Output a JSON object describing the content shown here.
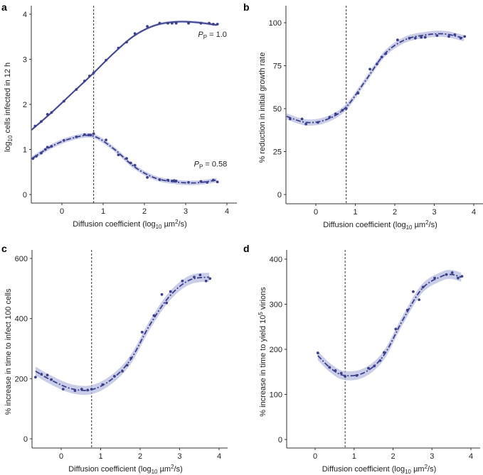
{
  "colors": {
    "line": "#3b3f8c",
    "point": "#3b3f8c",
    "band": "#b8bce0",
    "axis": "#333333",
    "vline": "#333333"
  },
  "chart_data": [
    {
      "id": "a",
      "letter": "a",
      "type": "scatter",
      "xlabel": {
        "pre": "Diffusion coefficient (log",
        "sub": "10",
        "mid": " µm",
        "sup": "2",
        "post": "/s)"
      },
      "ylabel": {
        "pre": "log",
        "sub": "10",
        "mid": " cells infected in 12 h",
        "sup": "",
        "post": ""
      },
      "xticks": [
        "0",
        "1",
        "2",
        "3",
        "4"
      ],
      "yticks": [
        "0",
        "1",
        "2",
        "3",
        "4"
      ],
      "xlim": [
        -0.74,
        4.24
      ],
      "ylim": [
        0,
        4
      ],
      "vline": 0.77,
      "series": [
        {
          "name": "PP = 1.0",
          "style": "solid",
          "band": 0.03,
          "annotation": {
            "pre": "P",
            "sub": "P",
            "post": " = 1.0",
            "x": 3.3,
            "y": 3.5
          },
          "points": [
            [
              -0.65,
              1.52
            ],
            [
              -0.5,
              1.62
            ],
            [
              -0.35,
              1.78
            ],
            [
              -0.25,
              1.82
            ],
            [
              0.05,
              2.07
            ],
            [
              0.35,
              2.33
            ],
            [
              0.55,
              2.52
            ],
            [
              0.67,
              2.63
            ],
            [
              0.77,
              2.7
            ],
            [
              1.07,
              2.98
            ],
            [
              1.37,
              3.25
            ],
            [
              1.57,
              3.38
            ],
            [
              1.77,
              3.57
            ],
            [
              2.07,
              3.73
            ],
            [
              2.37,
              3.8
            ],
            [
              2.57,
              3.8
            ],
            [
              2.67,
              3.8
            ],
            [
              2.77,
              3.8
            ],
            [
              3.07,
              3.8
            ],
            [
              3.37,
              3.8
            ],
            [
              3.57,
              3.8
            ],
            [
              3.67,
              3.78
            ],
            [
              3.77,
              3.78
            ]
          ],
          "fit": [
            [
              -0.74,
              1.43
            ],
            [
              -0.25,
              1.82
            ],
            [
              0.25,
              2.25
            ],
            [
              0.75,
              2.68
            ],
            [
              1.25,
              3.13
            ],
            [
              1.75,
              3.52
            ],
            [
              2.25,
              3.75
            ],
            [
              2.75,
              3.83
            ],
            [
              3.25,
              3.82
            ],
            [
              3.75,
              3.76
            ]
          ]
        },
        {
          "name": "PP = 0.58",
          "style": "dashdot",
          "band": 0.05,
          "annotation": {
            "pre": "P",
            "sub": "P",
            "post": " = 0.58",
            "x": 3.2,
            "y": 0.62
          },
          "points": [
            [
              -0.7,
              0.8
            ],
            [
              -0.62,
              0.85
            ],
            [
              -0.5,
              0.92
            ],
            [
              -0.4,
              1.0
            ],
            [
              -0.35,
              1.05
            ],
            [
              -0.25,
              1.07
            ],
            [
              0.05,
              1.2
            ],
            [
              0.35,
              1.28
            ],
            [
              0.55,
              1.33
            ],
            [
              0.65,
              1.32
            ],
            [
              0.7,
              1.32
            ],
            [
              0.77,
              1.35
            ],
            [
              1.07,
              1.21
            ],
            [
              1.37,
              0.88
            ],
            [
              1.57,
              0.8
            ],
            [
              1.67,
              0.7
            ],
            [
              1.77,
              0.65
            ],
            [
              2.07,
              0.38
            ],
            [
              2.37,
              0.33
            ],
            [
              2.57,
              0.32
            ],
            [
              2.67,
              0.3
            ],
            [
              2.72,
              0.31
            ],
            [
              2.77,
              0.3
            ],
            [
              3.07,
              0.27
            ],
            [
              3.37,
              0.29
            ],
            [
              3.52,
              0.27
            ],
            [
              3.67,
              0.32
            ],
            [
              3.77,
              0.28
            ]
          ],
          "fit": [
            [
              -0.74,
              0.79
            ],
            [
              -0.25,
              1.07
            ],
            [
              0.25,
              1.25
            ],
            [
              0.75,
              1.3
            ],
            [
              1.25,
              1.02
            ],
            [
              1.75,
              0.62
            ],
            [
              2.25,
              0.37
            ],
            [
              2.75,
              0.28
            ],
            [
              3.25,
              0.26
            ],
            [
              3.75,
              0.32
            ]
          ]
        }
      ]
    },
    {
      "id": "b",
      "letter": "b",
      "type": "scatter",
      "xlabel": {
        "pre": "Diffusion coefficient (log",
        "sub": "10",
        "mid": " µm",
        "sup": "2",
        "post": "/s)"
      },
      "ylabel": {
        "pre": "% reduction in initial growth rate",
        "sub": "",
        "mid": "",
        "sup": "",
        "post": ""
      },
      "xticks": [
        "0",
        "1",
        "2",
        "3",
        "4"
      ],
      "yticks": [
        "0",
        "25",
        "50",
        "75",
        "100"
      ],
      "xlim": [
        -0.74,
        4.24
      ],
      "ylim": [
        0,
        100
      ],
      "vline": 0.77,
      "series": [
        {
          "name": "fit",
          "style": "dashdot",
          "band": 1.8,
          "points": [
            [
              -0.65,
              44
            ],
            [
              -0.35,
              44
            ],
            [
              -0.25,
              41
            ],
            [
              0.05,
              42
            ],
            [
              0.35,
              45
            ],
            [
              0.5,
              47
            ],
            [
              0.67,
              49
            ],
            [
              0.77,
              50
            ],
            [
              1.07,
              59
            ],
            [
              1.37,
              73
            ],
            [
              1.55,
              76
            ],
            [
              1.67,
              80
            ],
            [
              1.77,
              82
            ],
            [
              2.07,
              90
            ],
            [
              2.37,
              91
            ],
            [
              2.52,
              91
            ],
            [
              2.67,
              91.5
            ],
            [
              2.77,
              91.5
            ],
            [
              3.07,
              92.5
            ],
            [
              3.37,
              92
            ],
            [
              3.52,
              93
            ],
            [
              3.67,
              91
            ],
            [
              3.77,
              92
            ]
          ],
          "fit": [
            [
              -0.74,
              45.5
            ],
            [
              -0.25,
              42
            ],
            [
              0.25,
              43.5
            ],
            [
              0.75,
              50.5
            ],
            [
              1.25,
              66
            ],
            [
              1.75,
              82
            ],
            [
              2.25,
              90
            ],
            [
              2.75,
              92.8
            ],
            [
              3.25,
              93.5
            ],
            [
              3.75,
              91
            ]
          ]
        }
      ]
    },
    {
      "id": "c",
      "letter": "c",
      "type": "scatter",
      "xlabel": {
        "pre": "Diffusion coefficient (log",
        "sub": "10",
        "mid": " µm",
        "sup": "2",
        "post": "/s)"
      },
      "ylabel": {
        "pre": "% increase in time to infect 100 cells",
        "sub": "",
        "mid": "",
        "sup": "",
        "post": ""
      },
      "xticks": [
        "0",
        "1",
        "2",
        "3",
        "4"
      ],
      "yticks": [
        "0",
        "200",
        "400",
        "600"
      ],
      "xlim": [
        -0.74,
        4.24
      ],
      "ylim": [
        0,
        600
      ],
      "vline": 0.77,
      "series": [
        {
          "name": "fit",
          "style": "dashdot",
          "band": 15,
          "points": [
            [
              -0.65,
              205
            ],
            [
              -0.5,
              215
            ],
            [
              -0.35,
              212
            ],
            [
              -0.25,
              197
            ],
            [
              0.05,
              165
            ],
            [
              0.35,
              160
            ],
            [
              0.52,
              165
            ],
            [
              0.67,
              162
            ],
            [
              0.77,
              165
            ],
            [
              1.05,
              180
            ],
            [
              1.35,
              208
            ],
            [
              1.55,
              225
            ],
            [
              1.67,
              245
            ],
            [
              1.77,
              268
            ],
            [
              2.05,
              355
            ],
            [
              2.35,
              410
            ],
            [
              2.55,
              480
            ],
            [
              2.67,
              452
            ],
            [
              2.77,
              490
            ],
            [
              3.07,
              525
            ],
            [
              3.37,
              538
            ],
            [
              3.52,
              545
            ],
            [
              3.67,
              525
            ],
            [
              3.77,
              533
            ]
          ],
          "fit": [
            [
              -0.65,
              225
            ],
            [
              -0.25,
              195
            ],
            [
              0.25,
              167
            ],
            [
              0.75,
              163
            ],
            [
              1.25,
              195
            ],
            [
              1.75,
              262
            ],
            [
              2.25,
              380
            ],
            [
              2.75,
              475
            ],
            [
              3.25,
              528
            ],
            [
              3.75,
              538
            ]
          ]
        }
      ]
    },
    {
      "id": "d",
      "letter": "d",
      "type": "scatter",
      "xlabel": {
        "pre": "Diffusion coefficient (log",
        "sub": "10",
        "mid": " µm",
        "sup": "2",
        "post": "/s)"
      },
      "ylabel": {
        "pre": "% increase in time to yield 10",
        "sub": "",
        "mid": "",
        "sup": "5",
        "post": " virions"
      },
      "xticks": [
        "0",
        "1",
        "2",
        "3",
        "4"
      ],
      "yticks": [
        "0",
        "100",
        "200",
        "300",
        "400"
      ],
      "xlim": [
        -0.74,
        4.24
      ],
      "ylim": [
        0,
        400
      ],
      "vline": 0.77,
      "series": [
        {
          "name": "fit",
          "style": "dashdot",
          "band": 10,
          "points": [
            [
              0.07,
              192
            ],
            [
              0.37,
              160
            ],
            [
              0.52,
              153
            ],
            [
              0.67,
              147
            ],
            [
              0.77,
              140
            ],
            [
              1.07,
              142
            ],
            [
              1.37,
              158
            ],
            [
              1.52,
              163
            ],
            [
              1.67,
              175
            ],
            [
              1.77,
              193
            ],
            [
              2.07,
              245
            ],
            [
              2.37,
              287
            ],
            [
              2.52,
              328
            ],
            [
              2.67,
              310
            ],
            [
              2.77,
              338
            ],
            [
              3.07,
              358
            ],
            [
              3.37,
              366
            ],
            [
              3.52,
              370
            ],
            [
              3.67,
              358
            ],
            [
              3.77,
              362
            ]
          ],
          "fit": [
            [
              0.07,
              186
            ],
            [
              0.4,
              158
            ],
            [
              0.75,
              142
            ],
            [
              1.25,
              148
            ],
            [
              1.75,
              185
            ],
            [
              2.25,
              265
            ],
            [
              2.75,
              335
            ],
            [
              3.25,
              362
            ],
            [
              3.5,
              366
            ],
            [
              3.75,
              360
            ]
          ]
        }
      ]
    }
  ]
}
